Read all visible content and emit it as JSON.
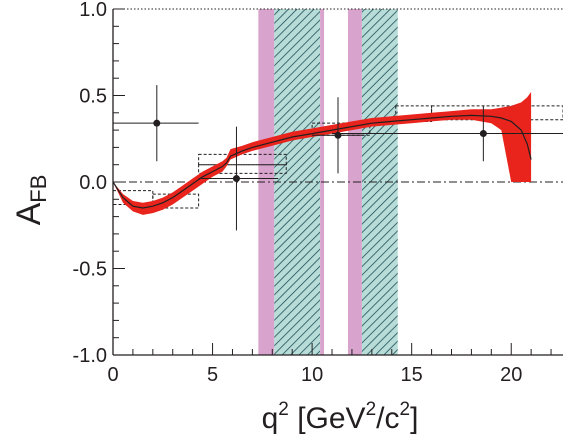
{
  "chart_data": {
    "type": "scatter",
    "title": "",
    "xlabel": "q^2 [GeV^2/c^2]",
    "xlabel_parts": {
      "main": "q",
      "sup1": "2",
      "mid": " [GeV",
      "sup2": "2",
      "sep": "/c",
      "sup3": "2",
      "end": "]"
    },
    "ylabel": "A_FB",
    "ylabel_parts": {
      "main": "A",
      "sub": "FB"
    },
    "xlim": [
      0,
      22.6
    ],
    "ylim": [
      -1.0,
      1.0
    ],
    "x_ticks": [
      {
        "value": 0,
        "label": "0"
      },
      {
        "value": 5,
        "label": "5"
      },
      {
        "value": 10,
        "label": "10"
      },
      {
        "value": 15,
        "label": "15"
      },
      {
        "value": 20,
        "label": "20"
      }
    ],
    "y_ticks": [
      {
        "value": -1.0,
        "label": "-1.0"
      },
      {
        "value": -0.5,
        "label": "-0.5"
      },
      {
        "value": 0.0,
        "label": "0.0"
      },
      {
        "value": 0.5,
        "label": "0.5"
      },
      {
        "value": 1.0,
        "label": "1.0"
      }
    ],
    "x_minor_step": 1,
    "y_minor_step": 0.1,
    "grid": false,
    "colors": {
      "band": "#e8241d",
      "veto_pink": "#d8a3cc",
      "veto_hatch_fill": "#b8dcd8",
      "veto_hatch_line": "#1e4d55",
      "axis": "#231f20"
    },
    "vetoed_regions": [
      {
        "kind": "pink",
        "x0": 7.3,
        "x1": 8.1
      },
      {
        "kind": "hatched",
        "x0": 8.1,
        "x1": 10.4
      },
      {
        "kind": "pink",
        "x0": 10.4,
        "x1": 10.6
      },
      {
        "kind": "pink",
        "x0": 11.8,
        "x1": 12.5
      },
      {
        "kind": "hatched",
        "x0": 12.5,
        "x1": 14.3
      }
    ],
    "data_points": [
      {
        "x": 2.2,
        "y": 0.34,
        "xerr": [
          2.2,
          2.1
        ],
        "yerr": [
          0.22,
          0.22
        ]
      },
      {
        "x": 6.2,
        "y": 0.02,
        "xerr": [
          1.9,
          2.1
        ],
        "yerr": [
          0.3,
          0.3
        ]
      },
      {
        "x": 11.3,
        "y": 0.27,
        "xerr": [
          1.3,
          1.3
        ],
        "yerr": [
          0.22,
          0.22
        ]
      },
      {
        "x": 18.6,
        "y": 0.28,
        "xerr": [
          4.3,
          4.0
        ],
        "yerr": [
          0.16,
          0.16
        ]
      }
    ],
    "binned_prediction_boxes": [
      {
        "x0": 0.0,
        "x1": 2.0,
        "y0": -0.13,
        "y1": -0.05
      },
      {
        "x0": 2.0,
        "x1": 4.3,
        "y0": -0.15,
        "y1": -0.07
      },
      {
        "x0": 4.3,
        "x1": 8.7,
        "y0": 0.1,
        "y1": 0.16
      },
      {
        "x0": 4.3,
        "x1": 8.7,
        "y0": 0.05,
        "y1": 0.1
      },
      {
        "x0": 10.0,
        "x1": 12.9,
        "y0": 0.27,
        "y1": 0.34
      },
      {
        "x0": 14.2,
        "x1": 16.0,
        "y0": 0.35,
        "y1": 0.44
      },
      {
        "x0": 16.0,
        "x1": 22.6,
        "y0": 0.36,
        "y1": 0.44
      }
    ],
    "theory_curve": {
      "x": [
        0.0,
        0.5,
        1.0,
        1.5,
        2.0,
        2.5,
        3.0,
        3.5,
        4.0,
        4.5,
        5.0,
        5.5,
        5.7,
        5.9,
        6.5,
        7.0,
        8.0,
        9.0,
        10.0,
        11.0,
        12.0,
        13.0,
        14.0,
        15.0,
        16.0,
        17.0,
        18.0,
        19.0,
        19.5,
        20.0,
        20.5,
        20.8,
        21.0
      ],
      "y": [
        0.0,
        -0.09,
        -0.14,
        -0.15,
        -0.14,
        -0.12,
        -0.09,
        -0.05,
        -0.01,
        0.03,
        0.06,
        0.09,
        0.11,
        0.15,
        0.18,
        0.2,
        0.23,
        0.26,
        0.28,
        0.3,
        0.32,
        0.34,
        0.35,
        0.36,
        0.37,
        0.38,
        0.385,
        0.38,
        0.37,
        0.35,
        0.3,
        0.22,
        0.13
      ],
      "y_lo": [
        0.0,
        -0.12,
        -0.17,
        -0.19,
        -0.18,
        -0.16,
        -0.13,
        -0.09,
        -0.05,
        -0.01,
        0.03,
        0.06,
        0.09,
        0.13,
        0.16,
        0.18,
        0.21,
        0.24,
        0.26,
        0.28,
        0.3,
        0.32,
        0.33,
        0.34,
        0.35,
        0.36,
        0.36,
        0.34,
        0.3,
        0.0,
        0.0,
        0.0,
        0.0
      ],
      "y_hi": [
        0.0,
        -0.07,
        -0.11,
        -0.12,
        -0.11,
        -0.09,
        -0.06,
        -0.02,
        0.02,
        0.06,
        0.09,
        0.12,
        0.14,
        0.19,
        0.21,
        0.23,
        0.26,
        0.29,
        0.31,
        0.33,
        0.35,
        0.37,
        0.38,
        0.39,
        0.4,
        0.41,
        0.42,
        0.42,
        0.43,
        0.44,
        0.46,
        0.49,
        0.52
      ]
    },
    "step_line": {
      "x": [
        11.0,
        22.6
      ],
      "y": [
        0.28,
        0.28
      ]
    },
    "reference_lines": [
      {
        "y": 0.0,
        "style": "dashdot"
      },
      {
        "y": 1.0,
        "style": "dotted"
      }
    ]
  }
}
